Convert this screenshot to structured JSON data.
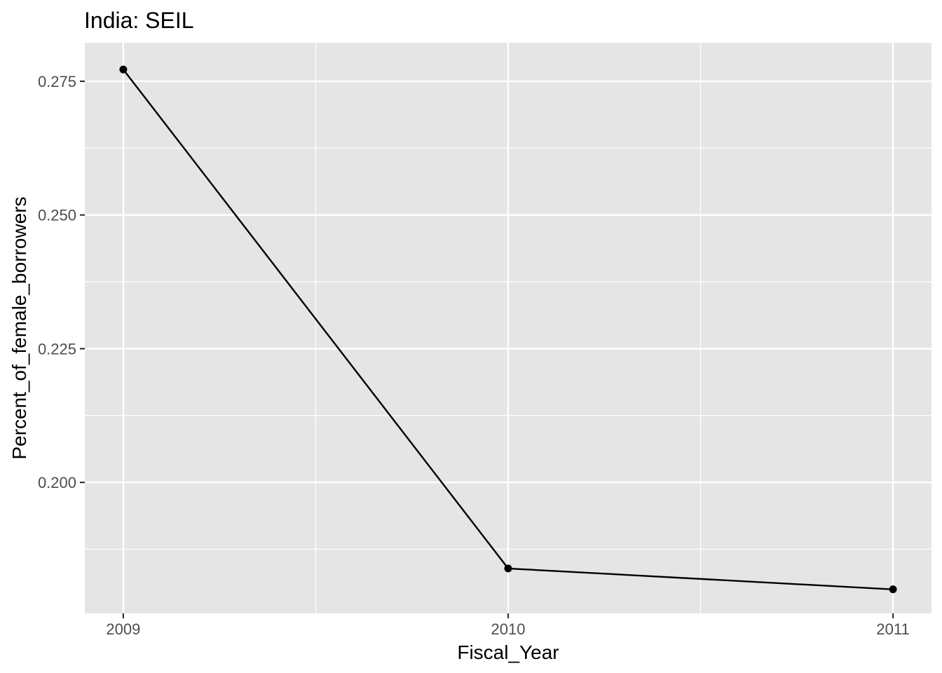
{
  "chart_data": {
    "type": "line",
    "title": "India:  SEIL",
    "xlabel": "Fiscal_Year",
    "ylabel": "Percent_of_female_borrowers",
    "x": [
      2009,
      2010,
      2011
    ],
    "series": [
      {
        "values": [
          0.2772,
          0.1839,
          0.18
        ]
      }
    ],
    "xlim": [
      2008.9,
      2011.1
    ],
    "ylim": [
      0.1755,
      0.2822
    ],
    "x_ticks": [
      2009,
      2010,
      2011
    ],
    "x_tick_labels": [
      "2009",
      "2010",
      "2011"
    ],
    "y_ticks": [
      0.2,
      0.225,
      0.25,
      0.275
    ],
    "y_tick_labels": [
      "0.200",
      "0.225",
      "0.250",
      "0.275"
    ],
    "grid": true,
    "background": "#e5e5e5",
    "grid_color": "#ffffff",
    "line_color": "#000000",
    "point_color": "#000000",
    "tick_label_color": "#4d4d4d",
    "legend": "none"
  }
}
